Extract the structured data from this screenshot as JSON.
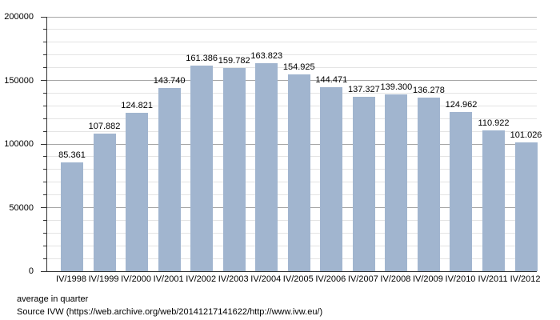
{
  "chart_data": {
    "type": "bar",
    "title": "",
    "categories": [
      "IV/1998",
      "IV/1999",
      "IV/2000",
      "IV/2001",
      "IV/2002",
      "IV/2003",
      "IV/2004",
      "IV/2005",
      "IV/2006",
      "IV/2007",
      "IV/2008",
      "IV/2009",
      "IV/2010",
      "IV/2011",
      "IV/2012"
    ],
    "values": [
      85361,
      107882,
      124821,
      143740,
      161386,
      159782,
      163823,
      154925,
      144471,
      137327,
      139300,
      136278,
      124962,
      110922,
      101026
    ],
    "value_labels": [
      "85.361",
      "107.882",
      "124.821",
      "143.740",
      "161.386",
      "159.782",
      "163.823",
      "154.925",
      "144.471",
      "137.327",
      "139.300",
      "136.278",
      "124.962",
      "110.922",
      "101.026"
    ],
    "xlabel": "",
    "ylabel": "",
    "ylim": [
      0,
      200000
    ],
    "y_major_step": 50000,
    "y_minor_step": 10000,
    "y_tick_labels": [
      "0",
      "50000",
      "100000",
      "150000",
      "200000"
    ],
    "grid": "on",
    "legend": "none",
    "bar_color": "#a1b5cf",
    "major_grid_color": "#a6a6a6",
    "minor_grid_color": "#e4e4e4",
    "axis_color": "#333333"
  },
  "footer": {
    "caption": "average in quarter",
    "source": "Source IVW (https://web.archive.org/web/20141217141622/http://www.ivw.eu/)"
  }
}
